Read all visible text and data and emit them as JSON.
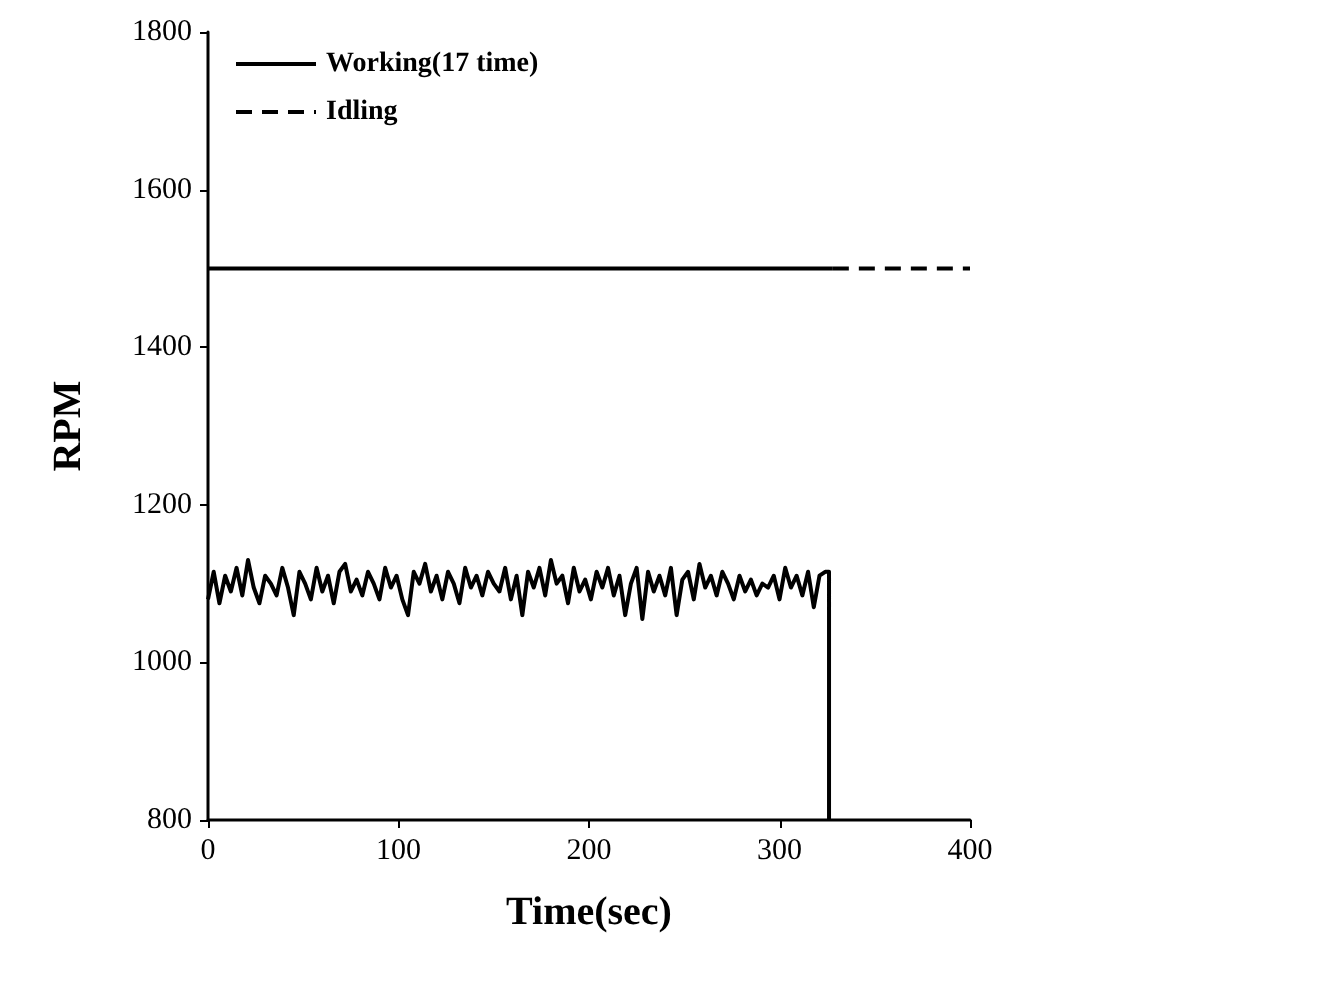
{
  "chart_data": {
    "type": "line",
    "xlabel": "Time(sec)",
    "ylabel": "RPM",
    "xlim": [
      0,
      400
    ],
    "xticks": [
      0,
      100,
      200,
      300,
      400
    ],
    "ylim": [
      800,
      1800
    ],
    "yticks": [
      800,
      1000,
      1200,
      1400,
      1600,
      1800
    ],
    "grid": false,
    "legend": "top left",
    "marker": "none",
    "series": [
      {
        "name": "Working(17 time)",
        "color": "#000000",
        "line_style": "solid",
        "x": [
          0,
          3,
          6,
          9,
          12,
          15,
          18,
          21,
          24,
          27,
          30,
          33,
          36,
          39,
          42,
          45,
          48,
          51,
          54,
          57,
          60,
          63,
          66,
          69,
          72,
          75,
          78,
          81,
          84,
          87,
          90,
          93,
          96,
          99,
          102,
          105,
          108,
          111,
          114,
          117,
          120,
          123,
          126,
          129,
          132,
          135,
          138,
          141,
          144,
          147,
          150,
          153,
          156,
          159,
          162,
          165,
          168,
          171,
          174,
          177,
          180,
          183,
          186,
          189,
          192,
          195,
          198,
          201,
          204,
          207,
          210,
          213,
          216,
          219,
          222,
          225,
          228,
          231,
          234,
          237,
          240,
          243,
          246,
          249,
          252,
          255,
          258,
          261,
          264,
          267,
          270,
          273,
          276,
          279,
          282,
          285,
          288,
          291,
          294,
          297,
          300,
          303,
          306,
          309,
          312,
          315,
          318,
          321,
          324,
          326,
          326
        ],
        "values": [
          1080,
          1115,
          1075,
          1110,
          1090,
          1120,
          1085,
          1130,
          1095,
          1075,
          1110,
          1100,
          1085,
          1120,
          1095,
          1060,
          1115,
          1100,
          1080,
          1120,
          1090,
          1110,
          1075,
          1115,
          1125,
          1090,
          1105,
          1085,
          1115,
          1100,
          1080,
          1120,
          1095,
          1110,
          1080,
          1060,
          1115,
          1100,
          1125,
          1090,
          1110,
          1080,
          1115,
          1100,
          1075,
          1120,
          1095,
          1110,
          1085,
          1115,
          1100,
          1090,
          1120,
          1080,
          1110,
          1060,
          1115,
          1095,
          1120,
          1085,
          1130,
          1100,
          1110,
          1075,
          1120,
          1090,
          1105,
          1080,
          1115,
          1095,
          1120,
          1085,
          1110,
          1060,
          1100,
          1120,
          1055,
          1115,
          1090,
          1110,
          1085,
          1120,
          1060,
          1105,
          1115,
          1080,
          1125,
          1095,
          1110,
          1085,
          1115,
          1100,
          1080,
          1110,
          1090,
          1105,
          1085,
          1100,
          1095,
          1110,
          1080,
          1120,
          1095,
          1110,
          1085,
          1115,
          1070,
          1110,
          1115,
          1115,
          800
        ]
      },
      {
        "color": "#000000",
        "line_style": "solid",
        "x": [
          0,
          328
        ],
        "values": [
          1500,
          1500
        ]
      },
      {
        "name": "Idling",
        "color": "#000000",
        "line_style": "dashed",
        "x": [
          328,
          400
        ],
        "values": [
          1500,
          1500
        ]
      }
    ]
  }
}
